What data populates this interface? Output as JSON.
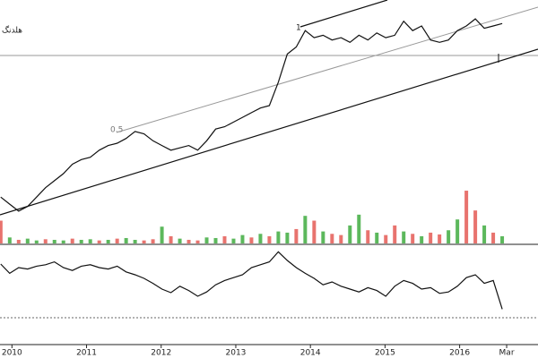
{
  "chart_data": [
    {
      "type": "line",
      "title": "هلدنگ",
      "annotations": [
        "0.5",
        "1"
      ],
      "color": "#111111",
      "x": [
        2009.85,
        2009.97,
        2010.09,
        2010.21,
        2010.33,
        2010.45,
        2010.57,
        2010.69,
        2010.81,
        2010.93,
        2011.05,
        2011.17,
        2011.29,
        2011.41,
        2011.53,
        2011.65,
        2011.77,
        2011.89,
        2012.01,
        2012.13,
        2012.25,
        2012.37,
        2012.49,
        2012.61,
        2012.73,
        2012.85,
        2012.97,
        2013.09,
        2013.21,
        2013.33,
        2013.45,
        2013.57,
        2013.69,
        2013.81,
        2013.93,
        2014.05,
        2014.17,
        2014.29,
        2014.41,
        2014.53,
        2014.65,
        2014.77,
        2014.89,
        2015.01,
        2015.13,
        2015.25,
        2015.37,
        2015.49,
        2015.61,
        2015.73,
        2015.85,
        2015.97,
        2016.09,
        2016.21,
        2016.33,
        2016.45,
        2016.57
      ],
      "values": [
        19,
        16,
        13,
        15,
        19,
        23,
        26,
        29,
        33,
        35,
        36,
        39,
        41,
        42,
        44,
        47,
        46,
        43,
        41,
        39,
        40,
        41,
        39,
        43,
        48,
        49,
        51,
        53,
        55,
        57,
        58,
        68,
        80,
        83,
        90,
        87,
        88,
        86,
        87,
        85,
        88,
        86,
        89,
        87,
        88,
        94,
        90,
        92,
        86,
        85,
        86,
        90,
        92,
        95,
        91,
        92,
        93
      ],
      "xlim": [
        2009.84,
        2017.05
      ],
      "ylim": [
        0,
        100
      ]
    },
    {
      "type": "bar",
      "x": [
        2009.85,
        2009.97,
        2010.09,
        2010.21,
        2010.33,
        2010.45,
        2010.57,
        2010.69,
        2010.81,
        2010.93,
        2011.05,
        2011.17,
        2011.29,
        2011.41,
        2011.53,
        2011.65,
        2011.77,
        2011.89,
        2012.01,
        2012.13,
        2012.25,
        2012.37,
        2012.49,
        2012.61,
        2012.73,
        2012.85,
        2012.97,
        2013.09,
        2013.21,
        2013.33,
        2013.45,
        2013.57,
        2013.69,
        2013.81,
        2013.93,
        2014.05,
        2014.17,
        2014.29,
        2014.41,
        2014.53,
        2014.65,
        2014.77,
        2014.89,
        2015.01,
        2015.13,
        2015.25,
        2015.37,
        2015.49,
        2015.61,
        2015.73,
        2015.85,
        2015.97,
        2016.09,
        2016.21,
        2016.33,
        2016.45,
        2016.57
      ],
      "values": [
        38,
        10,
        6,
        8,
        5,
        7,
        6,
        5,
        8,
        6,
        7,
        5,
        6,
        8,
        9,
        6,
        5,
        7,
        28,
        12,
        8,
        6,
        5,
        10,
        9,
        12,
        8,
        14,
        10,
        16,
        12,
        20,
        18,
        24,
        46,
        38,
        20,
        16,
        14,
        30,
        48,
        22,
        18,
        14,
        30,
        20,
        16,
        12,
        18,
        15,
        22,
        40,
        88,
        55,
        30,
        18,
        12
      ],
      "colors": [
        "#e8736e",
        "#5cb85c",
        "#e8736e",
        "#5cb85c",
        "#5cb85c",
        "#e8736e",
        "#5cb85c",
        "#5cb85c",
        "#e8736e",
        "#5cb85c",
        "#5cb85c",
        "#e8736e",
        "#5cb85c",
        "#e8736e",
        "#5cb85c",
        "#5cb85c",
        "#e8736e",
        "#e8736e",
        "#5cb85c",
        "#e8736e",
        "#5cb85c",
        "#e8736e",
        "#e8736e",
        "#5cb85c",
        "#5cb85c",
        "#e8736e",
        "#5cb85c",
        "#5cb85c",
        "#e8736e",
        "#5cb85c",
        "#e8736e",
        "#5cb85c",
        "#5cb85c",
        "#e8736e",
        "#5cb85c",
        "#e8736e",
        "#5cb85c",
        "#e8736e",
        "#e8736e",
        "#5cb85c",
        "#5cb85c",
        "#e8736e",
        "#5cb85c",
        "#e8736e",
        "#e8736e",
        "#5cb85c",
        "#e8736e",
        "#5cb85c",
        "#e8736e",
        "#e8736e",
        "#5cb85c",
        "#5cb85c",
        "#e8736e",
        "#e8736e",
        "#5cb85c",
        "#e8736e",
        "#5cb85c"
      ],
      "xlim": [
        2009.84,
        2017.05
      ],
      "ylim": [
        0,
        100
      ]
    },
    {
      "type": "line",
      "color": "#111111",
      "x": [
        2009.85,
        2009.97,
        2010.09,
        2010.21,
        2010.33,
        2010.45,
        2010.57,
        2010.69,
        2010.81,
        2010.93,
        2011.05,
        2011.17,
        2011.29,
        2011.41,
        2011.53,
        2011.65,
        2011.77,
        2011.89,
        2012.01,
        2012.13,
        2012.25,
        2012.37,
        2012.49,
        2012.61,
        2012.73,
        2012.85,
        2012.97,
        2013.09,
        2013.21,
        2013.33,
        2013.45,
        2013.57,
        2013.69,
        2013.81,
        2013.93,
        2014.05,
        2014.17,
        2014.29,
        2014.41,
        2014.53,
        2014.65,
        2014.77,
        2014.89,
        2015.01,
        2015.13,
        2015.25,
        2015.37,
        2015.49,
        2015.61,
        2015.73,
        2015.85,
        2015.97,
        2016.09,
        2016.21,
        2016.33,
        2016.45,
        2016.57
      ],
      "values": [
        75,
        62,
        70,
        68,
        72,
        74,
        78,
        70,
        66,
        72,
        74,
        70,
        68,
        72,
        64,
        60,
        55,
        48,
        40,
        35,
        44,
        38,
        30,
        36,
        46,
        52,
        56,
        60,
        70,
        74,
        78,
        92,
        80,
        70,
        62,
        55,
        46,
        50,
        44,
        40,
        36,
        42,
        38,
        30,
        44,
        52,
        48,
        40,
        42,
        34,
        36,
        44,
        56,
        60,
        48,
        52,
        12
      ],
      "xlim": [
        2009.84,
        2017.05
      ],
      "ylim": [
        0,
        100
      ],
      "xticks": [
        2010,
        2011,
        2012,
        2013,
        2014,
        2015,
        2016,
        {
          "value": 2016.63,
          "label": "Mar"
        }
      ]
    }
  ]
}
